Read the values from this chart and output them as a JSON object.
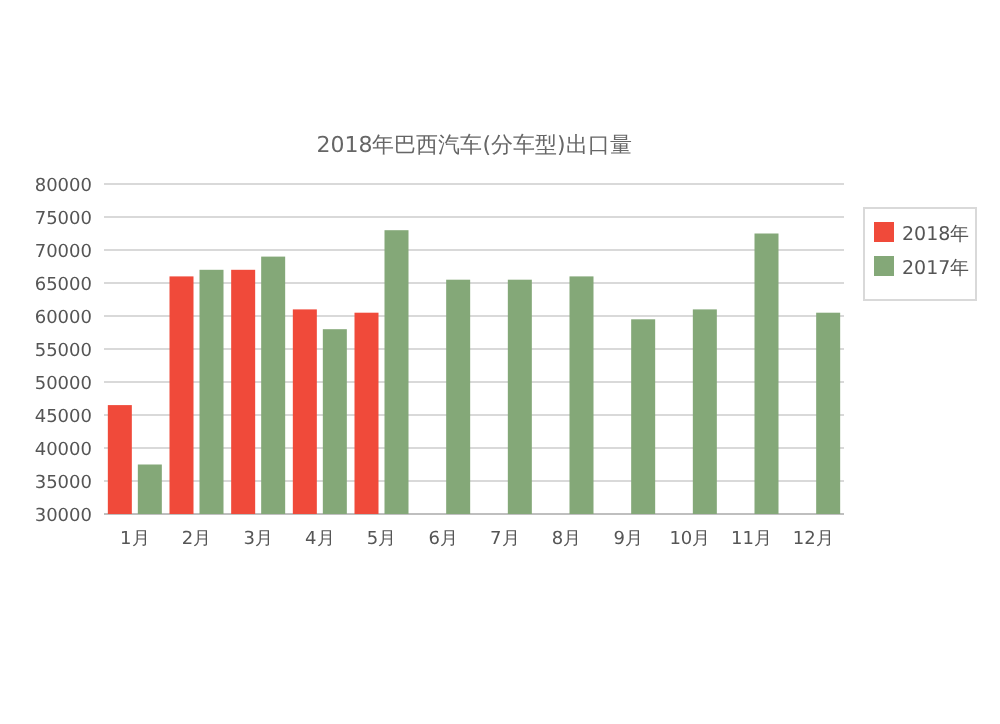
{
  "chart_data": {
    "type": "bar",
    "title": "2018年巴西汽车(分车型)出口量",
    "categories": [
      "1月",
      "2月",
      "3月",
      "4月",
      "5月",
      "6月",
      "7月",
      "8月",
      "9月",
      "10月",
      "11月",
      "12月"
    ],
    "series": [
      {
        "name": "2018年",
        "color": "#f04a3a",
        "values": [
          46500,
          66000,
          67000,
          61000,
          60500,
          null,
          null,
          null,
          null,
          null,
          null,
          null
        ]
      },
      {
        "name": "2017年",
        "color": "#84a878",
        "values": [
          37500,
          67000,
          69000,
          58000,
          73000,
          65500,
          65500,
          66000,
          59500,
          61000,
          72500,
          60500
        ]
      }
    ],
    "ylim": [
      30000,
      80000
    ],
    "yticks": [
      30000,
      35000,
      40000,
      45000,
      50000,
      55000,
      60000,
      65000,
      70000,
      75000,
      80000
    ],
    "grid": "y",
    "legend": "right"
  }
}
